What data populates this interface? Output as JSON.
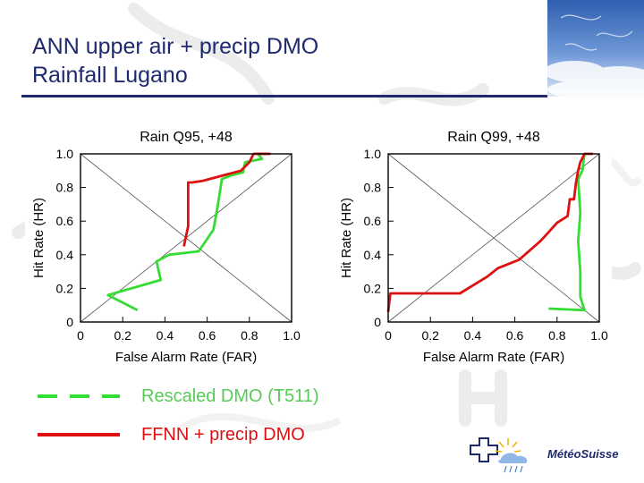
{
  "slide": {
    "title_line1": "ANN upper air + precip DMO",
    "title_line2": "Rainfall Lugano"
  },
  "colors": {
    "title": "#1f2a6e",
    "green": "#33dd33",
    "red": "#dd1111",
    "legend_green_text": "#55cc55",
    "legend_red_text": "#dd1111"
  },
  "legend": [
    {
      "label": "Rescaled DMO (T511)",
      "color": "#33dd33",
      "style": "dashed"
    },
    {
      "label": "FFNN + precip DMO",
      "color": "#dd1111",
      "style": "solid"
    }
  ],
  "logo": {
    "text": "MétéoSuisse"
  },
  "chart_data": [
    {
      "type": "line",
      "title": "Rain Q95, +48",
      "xlabel": "False Alarm Rate (FAR)",
      "ylabel": "Hit Rate (HR)",
      "xlim": [
        0,
        1
      ],
      "ylim": [
        0,
        1
      ],
      "x_ticks": [
        "0",
        "0.2",
        "0.4",
        "0.6",
        "0.8",
        "1.0"
      ],
      "y_ticks": [
        "0",
        "0.2",
        "0.4",
        "0.6",
        "0.8",
        "1.0"
      ],
      "series": [
        {
          "name": "Rescaled DMO (T511)",
          "color": "#33dd33",
          "x": [
            0.27,
            0.13,
            0.38,
            0.36,
            0.42,
            0.56,
            0.63,
            0.65,
            0.67,
            0.71,
            0.77,
            0.78,
            0.86,
            0.84,
            0.88
          ],
          "y": [
            0.07,
            0.16,
            0.25,
            0.36,
            0.4,
            0.42,
            0.55,
            0.69,
            0.85,
            0.87,
            0.89,
            0.95,
            0.97,
            1.0,
            1.0
          ]
        },
        {
          "name": "FFNN + precip DMO",
          "color": "#dd1111",
          "x": [
            0.49,
            0.51,
            0.51,
            0.53,
            0.58,
            0.76,
            0.8,
            0.82,
            0.9
          ],
          "y": [
            0.45,
            0.57,
            0.83,
            0.83,
            0.84,
            0.9,
            0.95,
            1.0,
            1.0
          ]
        }
      ]
    },
    {
      "type": "line",
      "title": "Rain Q99, +48",
      "xlabel": "False Alarm Rate (FAR)",
      "ylabel": "Hit Rate (HR)",
      "xlim": [
        0,
        1
      ],
      "ylim": [
        0,
        1
      ],
      "x_ticks": [
        "0",
        "0.2",
        "0.4",
        "0.6",
        "0.8",
        "1.0"
      ],
      "y_ticks": [
        "0",
        "0.2",
        "0.4",
        "0.6",
        "0.8",
        "1.0"
      ],
      "series": [
        {
          "name": "Rescaled DMO (T511)",
          "color": "#33dd33",
          "x": [
            0.76,
            0.93,
            0.91,
            0.91,
            0.9,
            0.91,
            0.9,
            0.92,
            0.93
          ],
          "y": [
            0.08,
            0.07,
            0.15,
            0.3,
            0.48,
            0.65,
            0.85,
            0.9,
            1.0
          ]
        },
        {
          "name": "FFNN + precip DMO",
          "color": "#dd1111",
          "x": [
            0.0,
            0.01,
            0.34,
            0.47,
            0.52,
            0.62,
            0.72,
            0.75,
            0.8,
            0.85,
            0.86,
            0.88,
            0.89,
            0.9,
            0.91,
            0.93,
            0.97
          ],
          "y": [
            0.06,
            0.17,
            0.17,
            0.27,
            0.32,
            0.37,
            0.48,
            0.52,
            0.59,
            0.63,
            0.73,
            0.73,
            0.83,
            0.9,
            0.95,
            1.0,
            1.0
          ]
        }
      ]
    }
  ]
}
